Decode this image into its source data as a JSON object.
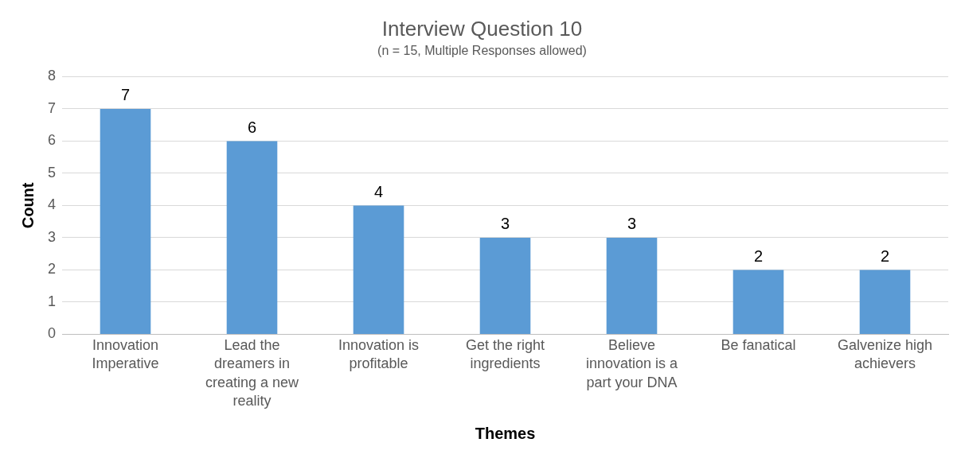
{
  "chart_data": {
    "type": "bar",
    "title": "Interview Question 10",
    "subtitle": "(n = 15, Multiple Responses allowed)",
    "xlabel": "Themes",
    "ylabel": "Count",
    "categories": [
      "Innovation Imperative",
      "Lead the dreamers in creating a new reality",
      "Innovation is profitable",
      "Get the right ingredients",
      "Believe innovation is a part your DNA",
      "Be fanatical",
      "Galvenize high achievers"
    ],
    "values": [
      7,
      6,
      4,
      3,
      3,
      2,
      2
    ],
    "color": "#5b9bd5",
    "ylim": [
      0,
      8
    ],
    "yticks": [
      0,
      1,
      2,
      3,
      4,
      5,
      6,
      7,
      8
    ],
    "grid": "y",
    "legend": false,
    "data_labels": true
  }
}
